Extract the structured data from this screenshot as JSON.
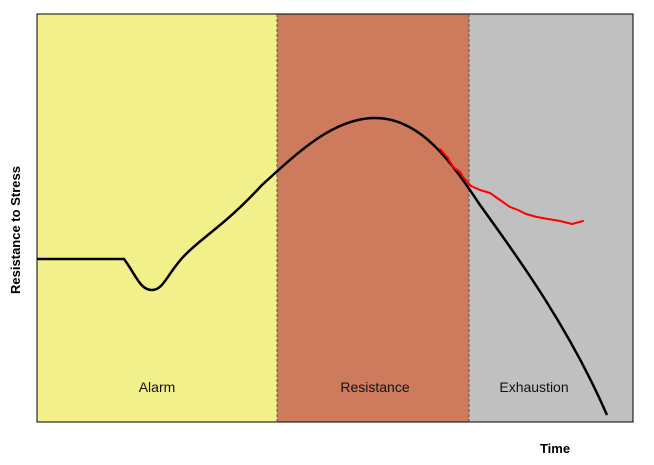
{
  "axes": {
    "y_label": "Resistance to Stress",
    "x_label": "Time"
  },
  "phases": [
    {
      "label": "Alarm",
      "color": "#f2f08a"
    },
    {
      "label": "Resistance",
      "color": "#cd7b5c"
    },
    {
      "label": "Exhaustion",
      "color": "#c0c0c0"
    }
  ],
  "curves": {
    "main_color": "#000000",
    "alternate_color": "#ff0000"
  }
}
